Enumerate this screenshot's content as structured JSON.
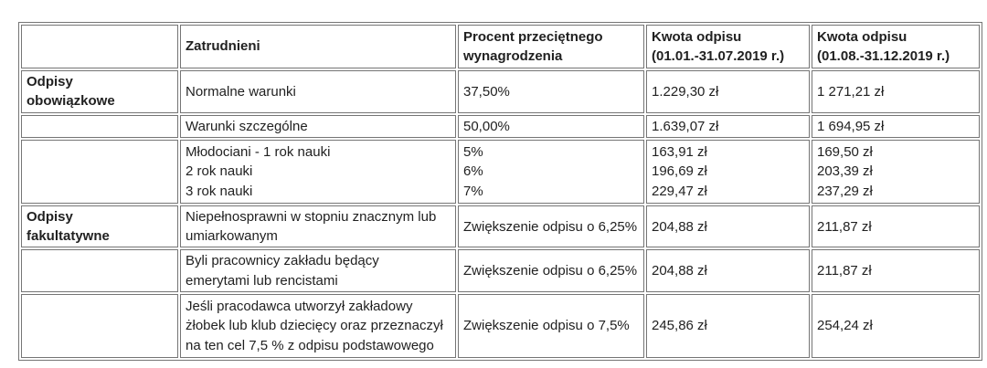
{
  "colors": {
    "border": "#757575",
    "text": "#212121",
    "background": "#ffffff"
  },
  "table": {
    "headers": [
      "",
      "Zatrudnieni",
      "Procent przeciętnego\nwynagrodzenia",
      "Kwota odpisu\n(01.01.-31.07.2019 r.)",
      "Kwota odpisu\n(01.08.-31.12.2019 r.)"
    ],
    "rows": [
      {
        "category": "Odpisy\nobowiązkowe",
        "employed": "Normalne warunki",
        "percent": "37,50%",
        "amount_jan_jul": "1.229,30 zł",
        "amount_aug_dec": "1 271,21 zł"
      },
      {
        "category": "",
        "employed": "Warunki szczególne",
        "percent": "50,00%",
        "amount_jan_jul": "1.639,07 zł",
        "amount_aug_dec": "1 694,95 zł"
      },
      {
        "category": "",
        "employed": "Młodociani - 1 rok nauki\n2 rok nauki\n3 rok nauki",
        "percent": "5%\n6%\n7%",
        "amount_jan_jul": "163,91 zł\n196,69 zł\n229,47 zł",
        "amount_aug_dec": "169,50 zł\n203,39 zł\n237,29 zł"
      },
      {
        "category": "Odpisy\nfakultatywne",
        "employed": "Niepełnosprawni w stopniu znacznym lub\numiarkowanym",
        "percent": "Zwiększenie odpisu o 6,25%",
        "amount_jan_jul": "204,88 zł",
        "amount_aug_dec": "211,87 zł"
      },
      {
        "category": "",
        "employed": "Byli pracownicy zakładu będący\nemerytami lub rencistami",
        "percent": "Zwiększenie odpisu o 6,25%",
        "amount_jan_jul": "204,88 zł",
        "amount_aug_dec": "211,87 zł"
      },
      {
        "category": "",
        "employed": "Jeśli pracodawca utworzył zakładowy\nżłobek lub klub dziecięcy oraz przeznaczył\nna ten cel 7,5 % z odpisu podstawowego",
        "percent": "Zwiększenie odpisu o 7,5%",
        "amount_jan_jul": "245,86 zł",
        "amount_aug_dec": "254,24 zł"
      }
    ]
  }
}
